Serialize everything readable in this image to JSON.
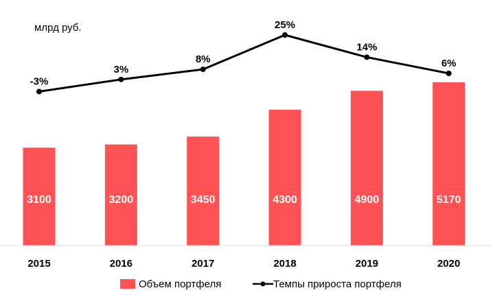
{
  "unit_label": "млрд руб.",
  "colors": {
    "bar": "#ff5254",
    "line": "#000000",
    "axis": "#d9d9d9"
  },
  "chart_data": {
    "type": "bar",
    "categories": [
      "2015",
      "2016",
      "2017",
      "2018",
      "2019",
      "2020"
    ],
    "series": [
      {
        "name": "Объем портфеля",
        "type": "bar",
        "values": [
          3100,
          3200,
          3450,
          4300,
          4900,
          5170
        ],
        "labels": [
          "3100",
          "3200",
          "3450",
          "4300",
          "4900",
          "5170"
        ]
      },
      {
        "name": "Темпы прироста портфеля",
        "type": "line",
        "values": [
          -3,
          3,
          8,
          25,
          14,
          6
        ],
        "labels": [
          "-3%",
          "3%",
          "8%",
          "25%",
          "14%",
          "6%"
        ]
      }
    ],
    "legend_position": "bottom",
    "grid": false
  }
}
